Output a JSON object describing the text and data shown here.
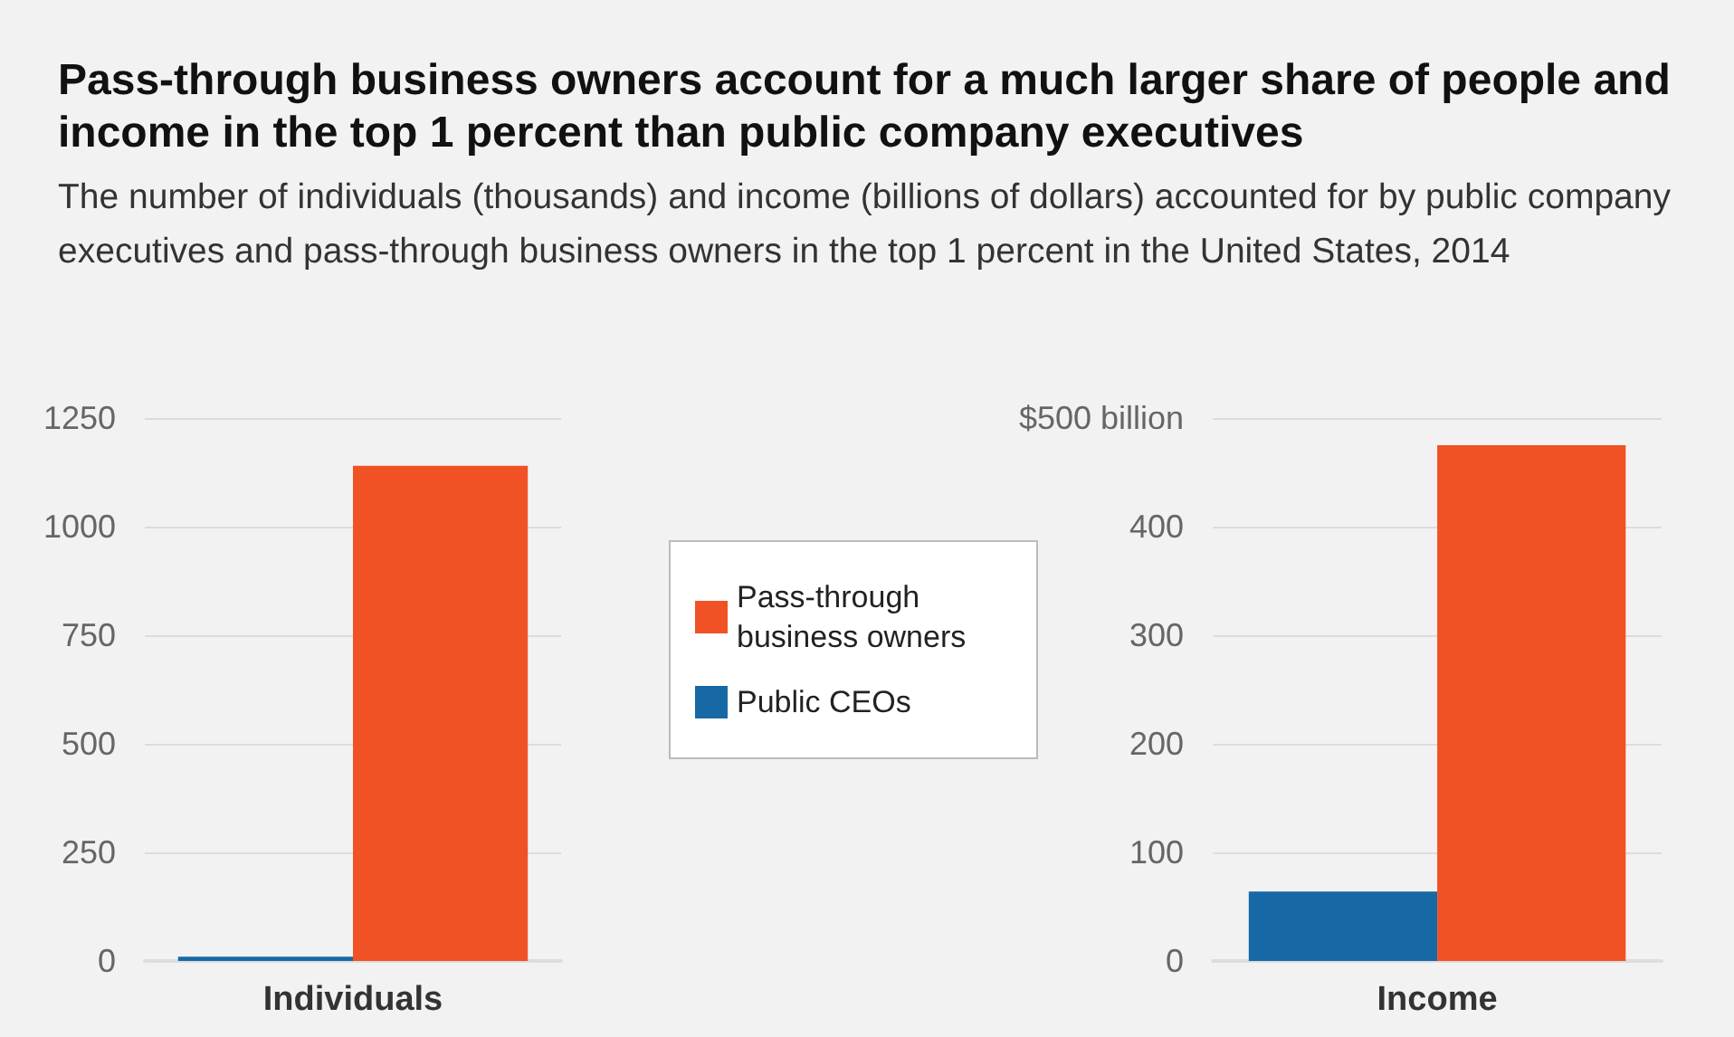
{
  "chart_data": [
    {
      "type": "bar",
      "title": "Pass-through business owners account for a much larger share of people and income in the top 1 percent than public company executives",
      "subtitle": "The number of individuals (thousands) and income (billions of dollars) accounted for by public company executives and pass-through business owners in the top 1 percent in the United States, 2014",
      "categories": [
        "Individuals"
      ],
      "series": [
        {
          "name": "Public CEOs",
          "color": "#1769a6",
          "values": [
            10
          ]
        },
        {
          "name": "Pass-through business owners",
          "color": "#f05226",
          "values": [
            1140
          ]
        }
      ],
      "ylim": [
        0,
        1250
      ],
      "yticks": [
        0,
        250,
        500,
        750,
        1000,
        1250
      ],
      "grid": "y",
      "legend": "right"
    },
    {
      "type": "bar",
      "categories": [
        "Income"
      ],
      "series": [
        {
          "name": "Public CEOs",
          "color": "#1769a6",
          "values": [
            64
          ]
        },
        {
          "name": "Pass-through business owners",
          "color": "#f05226",
          "values": [
            475
          ]
        }
      ],
      "ylim": [
        0,
        500
      ],
      "yticks": [
        0,
        100,
        200,
        300,
        400,
        {
          "value": 500,
          "label": "$500 billion"
        }
      ],
      "grid": "y",
      "legend": false
    }
  ]
}
